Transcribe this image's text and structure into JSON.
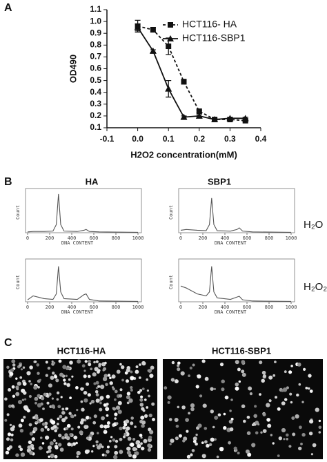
{
  "panel_labels": [
    "A",
    "B",
    "C"
  ],
  "chart_data": [
    {
      "type": "line",
      "xlabel": "H2O2 concentration(mM)",
      "ylabel": "OD490",
      "xlim": [
        -0.1,
        0.4
      ],
      "xticks": [
        -0.1,
        {
          "value": 0,
          "label": "0.0"
        },
        0.1,
        0.2,
        0.3,
        0.4
      ],
      "ylim": [
        0.1,
        1.1
      ],
      "yticks": [
        0.1,
        0.2,
        0.3,
        0.4,
        0.5,
        0.6,
        0.7,
        0.8,
        0.9,
        {
          "value": 1,
          "label": "1.0"
        },
        1.1
      ],
      "legend": "upper right",
      "x": [
        0,
        0.05,
        0.1,
        0.15,
        0.2,
        0.25,
        0.3,
        0.35
      ],
      "series": [
        {
          "name": "HCT116- HA",
          "color": "#111111",
          "line_style": "dashed",
          "marker": "square",
          "values": [
            0.96,
            0.93,
            0.79,
            0.49,
            0.24,
            0.17,
            0.17,
            0.16
          ],
          "errors": [
            0.05,
            0.02,
            0.07,
            0.02,
            0.01,
            0.01,
            0.01,
            0.01
          ]
        },
        {
          "name": "HCT116-SBP1",
          "color": "#111111",
          "line_style": "solid",
          "marker": "triangle",
          "values": [
            0.95,
            0.75,
            0.43,
            0.19,
            0.2,
            0.17,
            0.18,
            0.18
          ],
          "errors": [
            0.03,
            0.01,
            0.07,
            0.01,
            0.01,
            0.01,
            0.01,
            0.01
          ]
        }
      ]
    },
    {
      "type": "line",
      "xlabel": "DNA CONTENT",
      "ylabel": "Count",
      "xlim": [
        0,
        1000
      ],
      "xticks": [
        0,
        200,
        400,
        600,
        800,
        1000
      ],
      "ylim": [
        0,
        100
      ],
      "color": "#555555",
      "x": [
        0,
        50,
        150,
        230,
        260,
        280,
        300,
        330,
        450,
        510,
        530,
        560,
        650,
        1000
      ],
      "values": [
        2,
        3,
        3,
        4,
        20,
        95,
        20,
        4,
        3,
        6,
        8,
        3,
        2,
        1
      ]
    },
    {
      "type": "line",
      "xlabel": "DNA CONTENT",
      "ylabel": "Count",
      "xlim": [
        0,
        1000
      ],
      "xticks": [
        0,
        200,
        400,
        600,
        800,
        1000
      ],
      "ylim": [
        0,
        100
      ],
      "color": "#555555",
      "x": [
        0,
        50,
        150,
        230,
        260,
        280,
        300,
        330,
        450,
        510,
        530,
        560,
        650,
        1000
      ],
      "values": [
        6,
        8,
        6,
        5,
        20,
        85,
        20,
        5,
        4,
        8,
        12,
        4,
        2,
        1
      ]
    },
    {
      "type": "line",
      "xlabel": "DNA CONTENT",
      "ylabel": "Count",
      "xlim": [
        0,
        1000
      ],
      "xticks": [
        0,
        200,
        400,
        600,
        800,
        1000
      ],
      "ylim": [
        0,
        100
      ],
      "color": "#555555",
      "x": [
        0,
        50,
        150,
        230,
        260,
        280,
        300,
        330,
        450,
        510,
        530,
        560,
        650,
        1000
      ],
      "values": [
        5,
        15,
        8,
        6,
        20,
        90,
        25,
        8,
        6,
        18,
        20,
        6,
        2,
        1
      ]
    },
    {
      "type": "line",
      "xlabel": "DNA CONTENT",
      "ylabel": "Count",
      "xlim": [
        0,
        1000
      ],
      "xticks": [
        0,
        200,
        400,
        600,
        800,
        1000
      ],
      "ylim": [
        0,
        100
      ],
      "color": "#555555",
      "x": [
        0,
        50,
        150,
        230,
        260,
        280,
        300,
        330,
        450,
        510,
        530,
        560,
        650,
        1000
      ],
      "values": [
        40,
        35,
        20,
        15,
        25,
        90,
        25,
        10,
        6,
        12,
        14,
        5,
        2,
        1
      ]
    }
  ],
  "panel_b": {
    "columns": [
      "HA",
      "SBP1"
    ],
    "rows": [
      "H₂O",
      "H₂O₂"
    ]
  },
  "panel_c": {
    "images": [
      "HCT116-HA",
      "HCT116-SBP1"
    ]
  }
}
